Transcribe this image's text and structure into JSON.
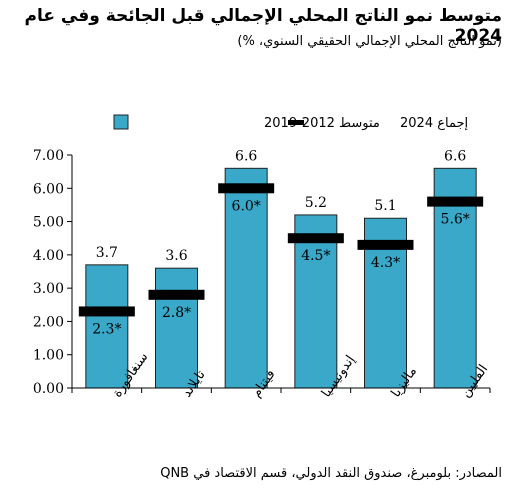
{
  "chart_data": {
    "type": "bar",
    "title": "متوسط نمو الناتج المحلي الإجمالي قبل الجائحة وفي عام 2024",
    "subtitle": "(نمو الناتج المحلي الإجمالي الحقيقي السنوي، %)",
    "source": "المصادر: بلومبرغ، صندوق النقد الدولي، قسم الاقتصاد في QNB",
    "categories": [
      "سنغافورة",
      "تايلاند",
      "فيتنام",
      "إندونيسيا",
      "ماليزيا",
      "الفلبين"
    ],
    "series": [
      {
        "name": "متوسط 2012-2019",
        "type": "bar",
        "color": "#3aa8c9",
        "values": [
          3.7,
          3.6,
          6.6,
          5.2,
          5.1,
          6.6
        ],
        "labels": [
          "3.7",
          "3.6",
          "6.6",
          "5.2",
          "5.1",
          "6.6"
        ]
      },
      {
        "name": "إجماع 2024",
        "type": "marker",
        "color": "#000000",
        "values": [
          2.3,
          2.8,
          6.0,
          4.5,
          4.3,
          5.6
        ],
        "labels": [
          "2.3*",
          "2.8*",
          "6.0*",
          "4.5*",
          "4.3*",
          "5.6*"
        ]
      }
    ],
    "ylim": [
      0,
      7
    ],
    "yticks": [
      "0.00",
      "1.00",
      "2.00",
      "3.00",
      "4.00",
      "5.00",
      "6.00",
      "7.00"
    ],
    "legend_position": "top",
    "grid": false
  }
}
